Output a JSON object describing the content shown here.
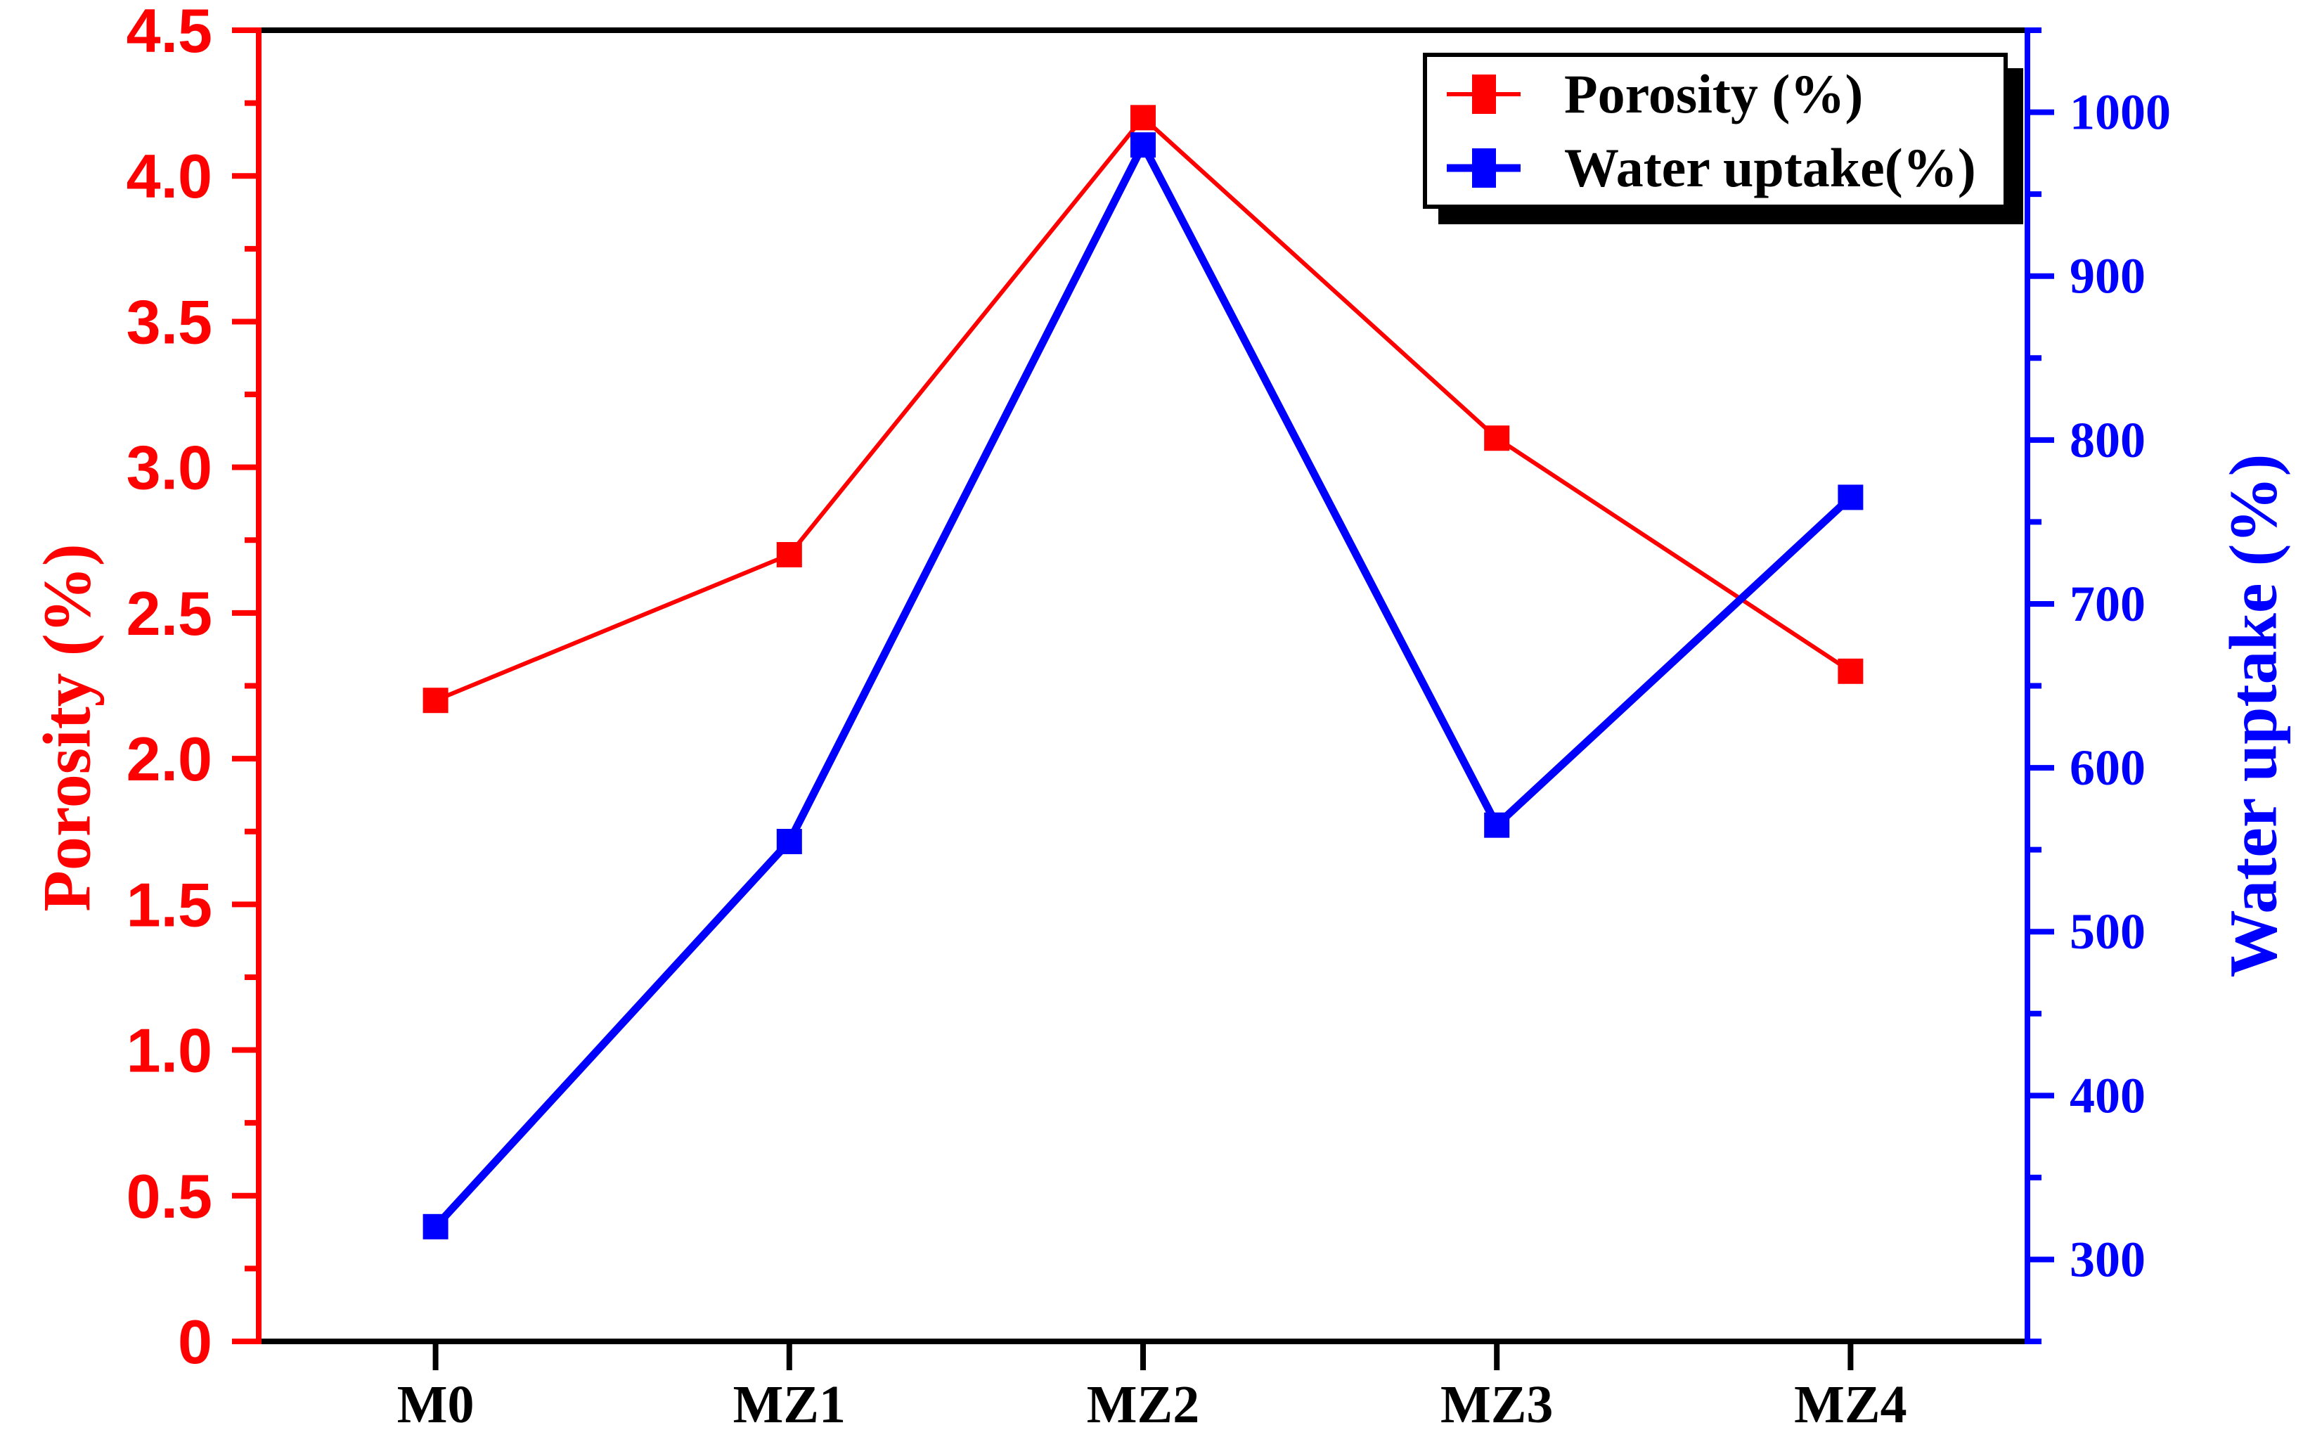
{
  "chart_data": {
    "type": "line",
    "dual_axis": true,
    "title": "",
    "background": "#ffffff",
    "grid": false,
    "categories": [
      "M0",
      "MZ1",
      "MZ2",
      "MZ3",
      "MZ4"
    ],
    "series": [
      {
        "id": "porosity",
        "name": "Porosity (%)",
        "axis": "left",
        "color": "#ff0000",
        "marker": "square",
        "values": [
          2.2,
          2.7,
          4.2,
          3.1,
          2.3
        ]
      },
      {
        "id": "water-uptake",
        "name": "Water uptake(%)",
        "axis": "right",
        "color": "#0000ff",
        "marker": "square",
        "values": [
          320,
          555,
          980,
          565,
          765
        ]
      }
    ],
    "left_axis": {
      "label": "Porosity (%)",
      "color": "#ff0000",
      "min": 0,
      "max": 4.5,
      "major_step": 0.5,
      "minor_step": 0.25,
      "tick_labels": [
        "0",
        "0.5",
        "1.0",
        "1.5",
        "2.0",
        "2.5",
        "3.0",
        "3.5",
        "4.0",
        "4.5"
      ]
    },
    "right_axis": {
      "label": "Water uptake (%)",
      "color": "#0000ff",
      "min": 250,
      "max": 1050,
      "major_step": 100,
      "minor_step": 50,
      "tick_labels": [
        "300",
        "400",
        "500",
        "600",
        "700",
        "800",
        "900",
        "1000"
      ]
    },
    "x_axis": {
      "color": "#000000",
      "tick_labels": [
        "M0",
        "MZ1",
        "MZ2",
        "MZ3",
        "MZ4"
      ]
    },
    "legend": {
      "position": "top-right",
      "entries": [
        "Porosity (%)",
        "Water uptake(%)"
      ]
    }
  }
}
